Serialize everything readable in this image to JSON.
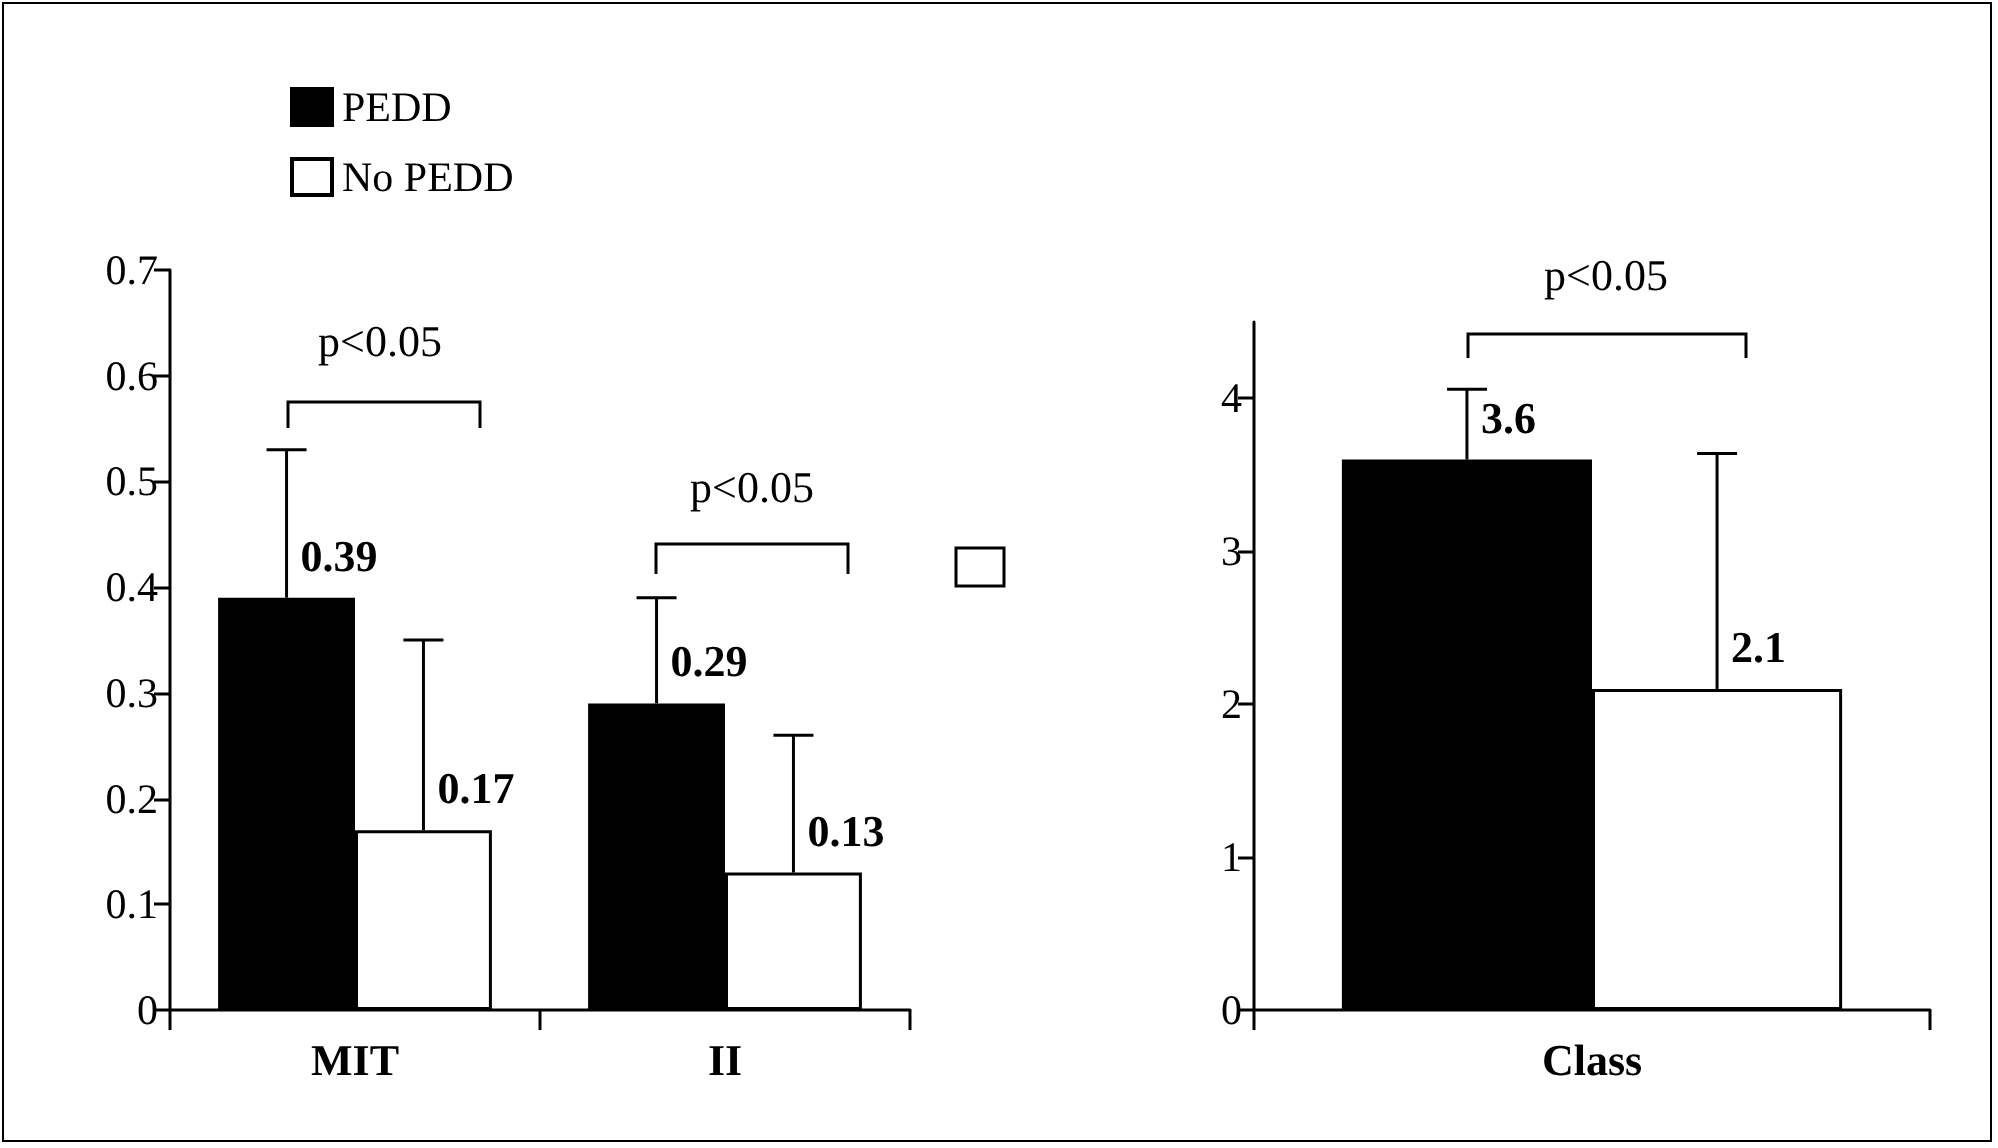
{
  "chart_data": [
    {
      "type": "bar",
      "categories": [
        "MIT",
        "II"
      ],
      "series": [
        {
          "name": "PEDD",
          "color": "#000000",
          "values": [
            0.39,
            0.29
          ],
          "errors": [
            [
              0.39,
              0.53
            ],
            [
              0.29,
              0.39
            ]
          ]
        },
        {
          "name": "No PEDD",
          "color": "#ffffff",
          "values": [
            0.17,
            0.13
          ],
          "errors": [
            [
              0.17,
              0.35
            ],
            [
              0.13,
              0.26
            ]
          ]
        }
      ],
      "ylim": [
        0,
        0.7
      ],
      "yticks": [
        0,
        0.1,
        0.2,
        0.3,
        0.4,
        0.5,
        0.6,
        0.7
      ],
      "data_labels": true,
      "legend": "top left",
      "annotations": [
        "p<0.05",
        "p<0.05"
      ]
    },
    {
      "type": "bar",
      "categories": [
        "Class"
      ],
      "series": [
        {
          "color": "#000000",
          "values": [
            3.6
          ],
          "errors": [
            [
              3.6,
              4.06
            ]
          ]
        },
        {
          "color": "#ffffff",
          "values": [
            2.1
          ],
          "errors": [
            [
              2.1,
              3.64
            ]
          ]
        }
      ],
      "ylim": [
        0,
        4.5
      ],
      "yticks": [
        0,
        1,
        2,
        3,
        4
      ],
      "data_labels": true,
      "annotations": [
        "p<0.05"
      ]
    }
  ]
}
